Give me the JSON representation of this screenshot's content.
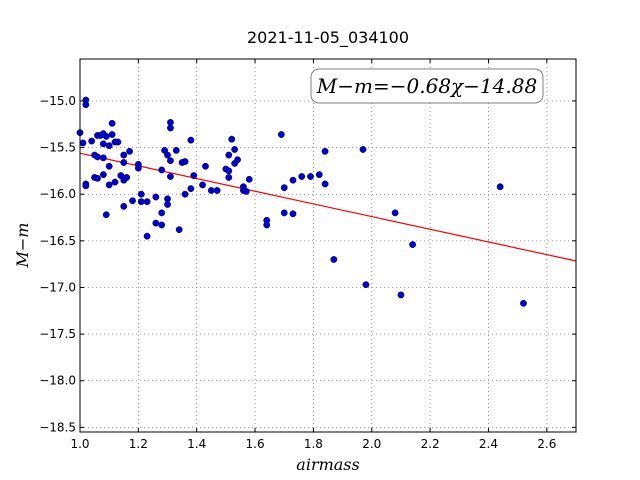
{
  "chart_data": {
    "type": "scatter",
    "title": "2021-11-05_034100",
    "xlabel": "airmass",
    "ylabel": "M−m",
    "xlim": [
      1.0,
      2.7
    ],
    "ylim": [
      -18.55,
      -14.55
    ],
    "y_inverted": true,
    "xticks": [
      1.0,
      1.2,
      1.4,
      1.6,
      1.8,
      2.0,
      2.2,
      2.4,
      2.6
    ],
    "xtick_labels": [
      "1.0",
      "1.2",
      "1.4",
      "1.6",
      "1.8",
      "2.0",
      "2.2",
      "2.4",
      "2.6"
    ],
    "yticks": [
      -15.0,
      -15.5,
      -16.0,
      -16.5,
      -17.0,
      -17.5,
      -18.0,
      -18.5
    ],
    "ytick_labels": [
      "−15.0",
      "−15.5",
      "−16.0",
      "−16.5",
      "−17.0",
      "−17.5",
      "−18.0",
      "−18.5"
    ],
    "grid": true,
    "annotation": "M−m=−0.68χ−14.88",
    "fit": {
      "slope": -0.68,
      "intercept": -14.88,
      "color": "#ff0000"
    },
    "point_color": "#0000cc",
    "points": [
      [
        1.0,
        -15.34
      ],
      [
        1.01,
        -15.45
      ],
      [
        1.02,
        -14.99
      ],
      [
        1.02,
        -15.04
      ],
      [
        1.02,
        -15.89
      ],
      [
        1.02,
        -15.91
      ],
      [
        1.04,
        -15.43
      ],
      [
        1.05,
        -15.58
      ],
      [
        1.05,
        -15.82
      ],
      [
        1.06,
        -15.37
      ],
      [
        1.06,
        -15.6
      ],
      [
        1.06,
        -15.83
      ],
      [
        1.07,
        -15.37
      ],
      [
        1.08,
        -15.35
      ],
      [
        1.08,
        -15.46
      ],
      [
        1.08,
        -15.61
      ],
      [
        1.08,
        -15.79
      ],
      [
        1.09,
        -15.38
      ],
      [
        1.09,
        -16.22
      ],
      [
        1.1,
        -15.48
      ],
      [
        1.1,
        -15.7
      ],
      [
        1.1,
        -15.9
      ],
      [
        1.11,
        -15.24
      ],
      [
        1.11,
        -15.36
      ],
      [
        1.12,
        -15.44
      ],
      [
        1.12,
        -15.87
      ],
      [
        1.13,
        -15.44
      ],
      [
        1.14,
        -15.8
      ],
      [
        1.15,
        -15.58
      ],
      [
        1.15,
        -15.66
      ],
      [
        1.15,
        -15.85
      ],
      [
        1.15,
        -16.13
      ],
      [
        1.16,
        -15.82
      ],
      [
        1.17,
        -15.54
      ],
      [
        1.18,
        -16.07
      ],
      [
        1.2,
        -15.68
      ],
      [
        1.2,
        -15.72
      ],
      [
        1.21,
        -16.0
      ],
      [
        1.21,
        -16.08
      ],
      [
        1.23,
        -16.08
      ],
      [
        1.23,
        -16.45
      ],
      [
        1.26,
        -16.03
      ],
      [
        1.26,
        -16.31
      ],
      [
        1.28,
        -15.74
      ],
      [
        1.28,
        -16.2
      ],
      [
        1.28,
        -16.33
      ],
      [
        1.29,
        -15.53
      ],
      [
        1.3,
        -15.58
      ],
      [
        1.3,
        -16.05
      ],
      [
        1.3,
        -16.11
      ],
      [
        1.31,
        -15.23
      ],
      [
        1.31,
        -15.29
      ],
      [
        1.31,
        -15.64
      ],
      [
        1.31,
        -15.81
      ],
      [
        1.33,
        -15.53
      ],
      [
        1.34,
        -16.38
      ],
      [
        1.35,
        -15.66
      ],
      [
        1.36,
        -15.65
      ],
      [
        1.36,
        -16.0
      ],
      [
        1.38,
        -15.42
      ],
      [
        1.38,
        -15.94
      ],
      [
        1.39,
        -15.8
      ],
      [
        1.42,
        -15.9
      ],
      [
        1.43,
        -15.7
      ],
      [
        1.45,
        -15.96
      ],
      [
        1.47,
        -15.96
      ],
      [
        1.5,
        -15.73
      ],
      [
        1.51,
        -15.58
      ],
      [
        1.51,
        -15.75
      ],
      [
        1.51,
        -15.82
      ],
      [
        1.52,
        -15.41
      ],
      [
        1.53,
        -15.52
      ],
      [
        1.53,
        -15.67
      ],
      [
        1.54,
        -15.63
      ],
      [
        1.56,
        -15.92
      ],
      [
        1.56,
        -15.96
      ],
      [
        1.57,
        -15.97
      ],
      [
        1.58,
        -15.84
      ],
      [
        1.64,
        -16.28
      ],
      [
        1.64,
        -16.33
      ],
      [
        1.69,
        -15.36
      ],
      [
        1.7,
        -15.93
      ],
      [
        1.7,
        -16.2
      ],
      [
        1.73,
        -15.85
      ],
      [
        1.73,
        -16.21
      ],
      [
        1.76,
        -15.81
      ],
      [
        1.79,
        -15.81
      ],
      [
        1.82,
        -15.79
      ],
      [
        1.84,
        -15.54
      ],
      [
        1.84,
        -15.89
      ],
      [
        1.87,
        -16.7
      ],
      [
        1.97,
        -15.52
      ],
      [
        1.98,
        -16.97
      ],
      [
        2.08,
        -16.2
      ],
      [
        2.1,
        -17.08
      ],
      [
        2.14,
        -16.54
      ],
      [
        2.44,
        -15.92
      ],
      [
        2.52,
        -17.17
      ]
    ]
  }
}
